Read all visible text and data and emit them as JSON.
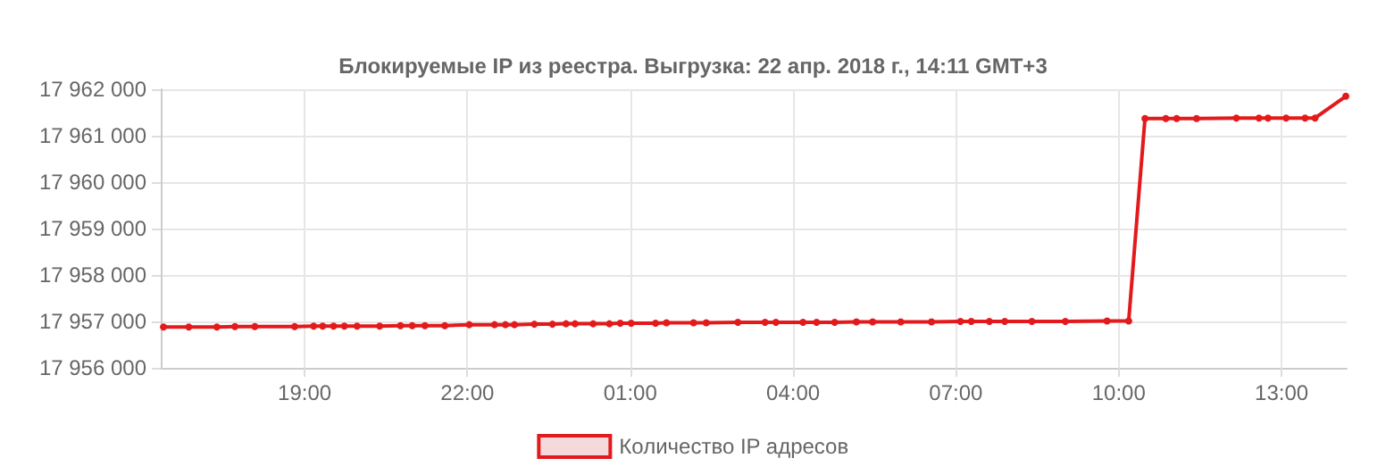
{
  "chart_data": {
    "type": "line",
    "title": "Блокируемые IP из реестра. Выгрузка: 22 апр. 2018 г., 14:11 GMT+3",
    "x": [
      "2018-04-21T16:24",
      "2018-04-21T16:52",
      "2018-04-21T17:23",
      "2018-04-21T17:43",
      "2018-04-21T18:05",
      "2018-04-21T18:49",
      "2018-04-21T19:10",
      "2018-04-21T19:20",
      "2018-04-21T19:32",
      "2018-04-21T19:44",
      "2018-04-21T19:58",
      "2018-04-21T20:23",
      "2018-04-21T20:46",
      "2018-04-21T20:59",
      "2018-04-21T21:13",
      "2018-04-21T21:35",
      "2018-04-21T22:02",
      "2018-04-21T22:30",
      "2018-04-21T22:42",
      "2018-04-21T22:52",
      "2018-04-21T23:14",
      "2018-04-21T23:34",
      "2018-04-21T23:49",
      "2018-04-21T23:59",
      "2018-04-22T00:19",
      "2018-04-22T00:37",
      "2018-04-22T00:49",
      "2018-04-22T01:01",
      "2018-04-22T01:28",
      "2018-04-22T01:40",
      "2018-04-22T02:10",
      "2018-04-22T02:24",
      "2018-04-22T02:59",
      "2018-04-22T03:29",
      "2018-04-22T03:41",
      "2018-04-22T04:11",
      "2018-04-22T04:26",
      "2018-04-22T04:46",
      "2018-04-22T05:10",
      "2018-04-22T05:28",
      "2018-04-22T05:59",
      "2018-04-22T06:33",
      "2018-04-22T07:05",
      "2018-04-22T07:17",
      "2018-04-22T07:37",
      "2018-04-22T07:54",
      "2018-04-22T08:24",
      "2018-04-22T09:01",
      "2018-04-22T09:47",
      "2018-04-22T10:11",
      "2018-04-22T10:29",
      "2018-04-22T10:52",
      "2018-04-22T11:04",
      "2018-04-22T11:26",
      "2018-04-22T12:10",
      "2018-04-22T12:35",
      "2018-04-22T12:45",
      "2018-04-22T13:05",
      "2018-04-22T13:26",
      "2018-04-22T13:37",
      "2018-04-22T14:11"
    ],
    "series": [
      {
        "name": "Количество IP адресов",
        "color": "#e31a1c",
        "values": [
          17956880,
          17956880,
          17956880,
          17956890,
          17956890,
          17956890,
          17956900,
          17956900,
          17956900,
          17956900,
          17956900,
          17956900,
          17956910,
          17956910,
          17956910,
          17956910,
          17956930,
          17956930,
          17956930,
          17956930,
          17956940,
          17956940,
          17956950,
          17956950,
          17956950,
          17956950,
          17956960,
          17956960,
          17956960,
          17956970,
          17956970,
          17956970,
          17956980,
          17956980,
          17956980,
          17956980,
          17956980,
          17956980,
          17956990,
          17956990,
          17956990,
          17956990,
          17957000,
          17957000,
          17957000,
          17957000,
          17957000,
          17957000,
          17957010,
          17957010,
          17961370,
          17961370,
          17961370,
          17961370,
          17961380,
          17961380,
          17961380,
          17961380,
          17961380,
          17961380,
          17961850
        ]
      }
    ],
    "xlim": [
      "2018-04-21T16:21",
      "2018-04-22T14:12"
    ],
    "xticks": [
      {
        "value": "2018-04-21T19:00",
        "label": "19:00"
      },
      {
        "value": "2018-04-21T22:00",
        "label": "22:00"
      },
      {
        "value": "2018-04-22T01:00",
        "label": "01:00"
      },
      {
        "value": "2018-04-22T04:00",
        "label": "04:00"
      },
      {
        "value": "2018-04-22T07:00",
        "label": "07:00"
      },
      {
        "value": "2018-04-22T10:00",
        "label": "10:00"
      },
      {
        "value": "2018-04-22T13:00",
        "label": "13:00"
      }
    ],
    "ylim": [
      17956000,
      17962000
    ],
    "yticks": [
      {
        "value": 17956000,
        "label": "17 956 000"
      },
      {
        "value": 17957000,
        "label": "17 957 000"
      },
      {
        "value": 17958000,
        "label": "17 958 000"
      },
      {
        "value": 17959000,
        "label": "17 959 000"
      },
      {
        "value": 17960000,
        "label": "17 960 000"
      },
      {
        "value": 17961000,
        "label": "17 961 000"
      },
      {
        "value": 17962000,
        "label": "17 962 000"
      }
    ],
    "grid": true,
    "legend": "bottom",
    "marker": "circle",
    "line_style": "solid"
  }
}
